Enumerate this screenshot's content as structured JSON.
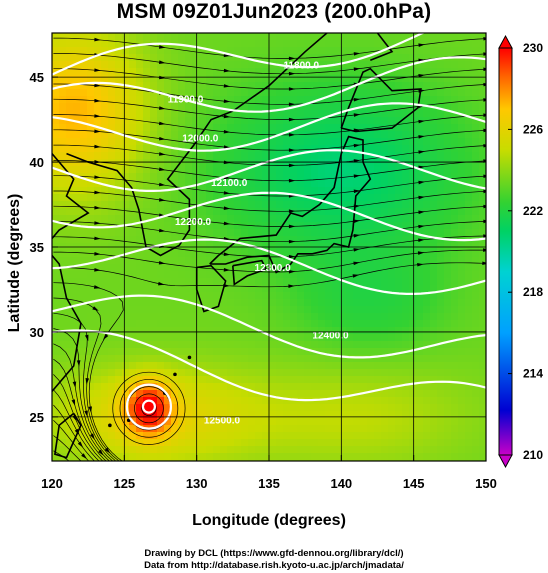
{
  "figure": {
    "title": "MSM 09Z01Jun2023 (200.0hPa)",
    "xlabel": "Longitude (degrees)",
    "ylabel": "Latitude  (degrees)",
    "credit_line1": "Drawing by DCL (https://www.gfd-dennou.org/library/dcl/)",
    "credit_line2": "Data from http://database.rish.kyoto-u.ac.jp/arch/jmadata/"
  },
  "chart_data": {
    "type": "heatmap",
    "title": "MSM 09Z01Jun2023 (200.0hPa)",
    "xlabel": "Longitude (degrees)",
    "ylabel": "Latitude  (degrees)",
    "xlim": [
      120,
      150
    ],
    "ylim": [
      22.4,
      47.6
    ],
    "x_ticks": [
      120,
      125,
      130,
      135,
      140,
      145,
      150
    ],
    "y_ticks": [
      25,
      30,
      35,
      40,
      45
    ],
    "grid": true,
    "colorbar": {
      "range": [
        210,
        230
      ],
      "ticks": [
        210,
        214,
        218,
        222,
        226,
        230
      ],
      "colors": [
        "#c800c8",
        "#0000d2",
        "#00a0ff",
        "#00d2d2",
        "#00d264",
        "#32d232",
        "#c8dc00",
        "#ffc800",
        "#ff6400",
        "#ff0000"
      ]
    },
    "contour_labels": [
      "11800.0",
      "11900.0",
      "12000.0",
      "12100.0",
      "12200.0",
      "12300.0",
      "12400.0",
      "12500.0"
    ],
    "colors": {
      "coast": "#000000",
      "contour": "#ffffff",
      "streamline": "#000000"
    }
  }
}
